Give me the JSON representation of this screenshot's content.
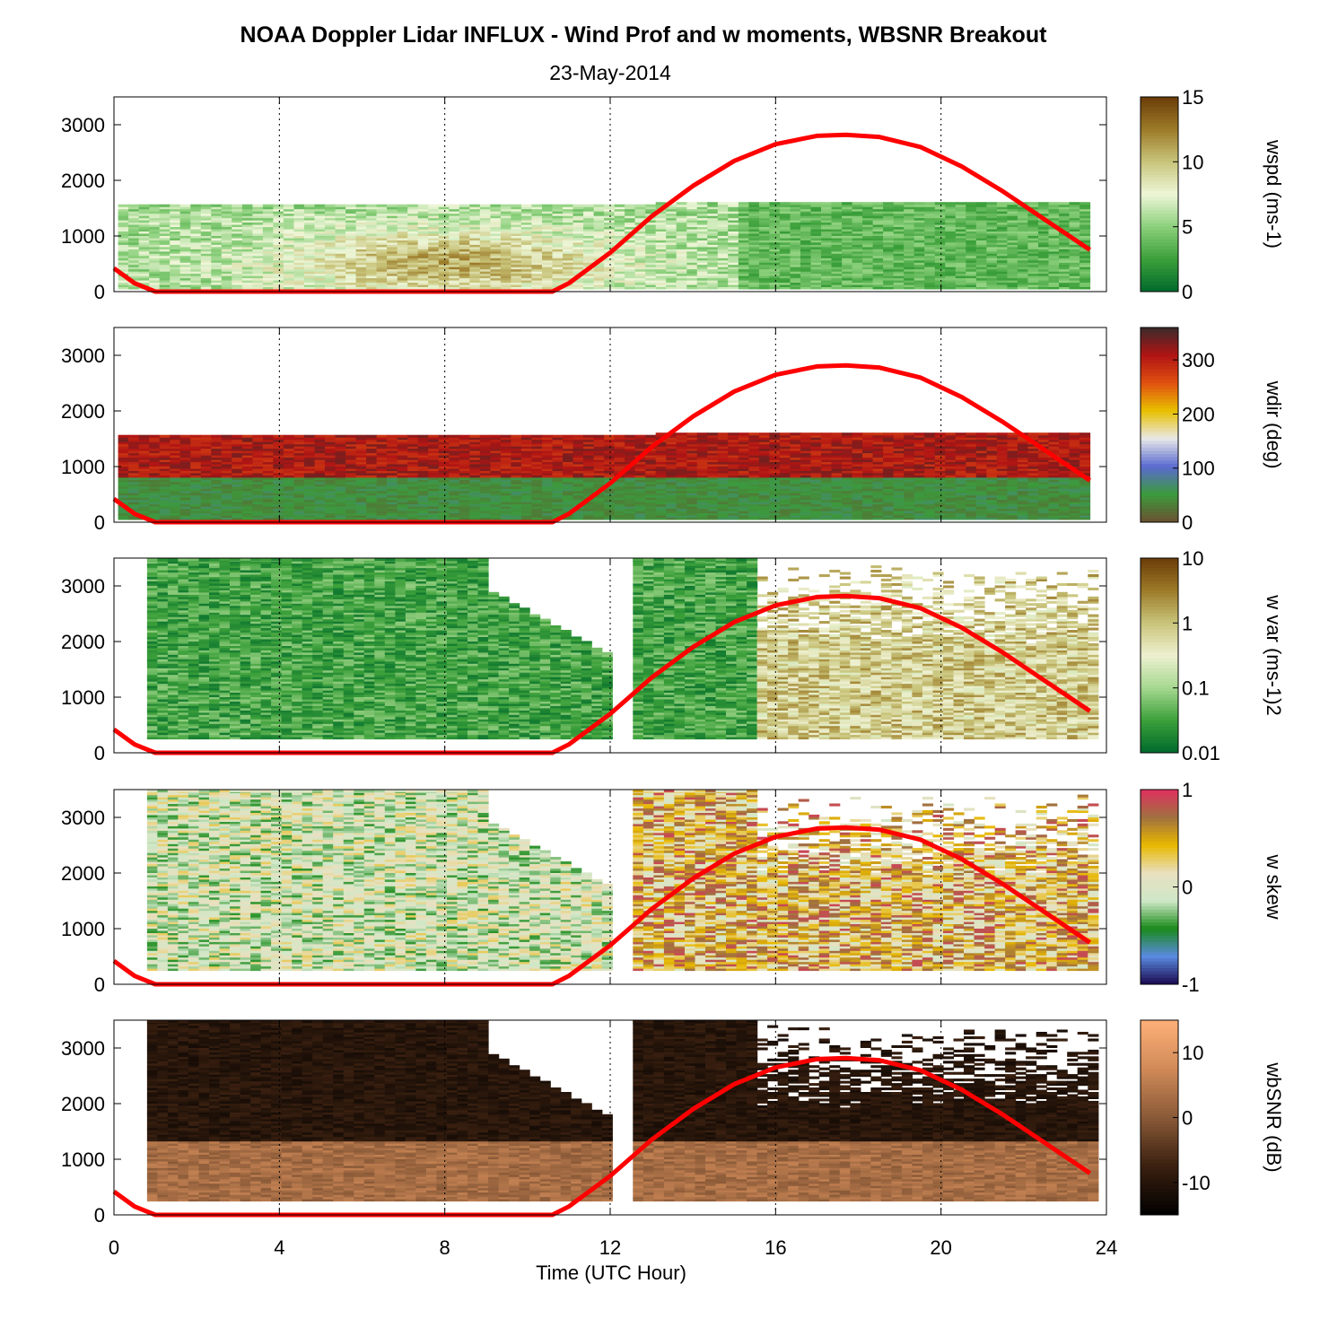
{
  "title": "NOAA Doppler Lidar INFLUX - Wind Prof and w moments, WBSNR Breakout",
  "subtitle": "23-May-2014",
  "xlabel": "Time (UTC Hour)",
  "xticks": [
    "0",
    "4",
    "8",
    "12",
    "16",
    "20",
    "24"
  ],
  "yticks": [
    "0",
    "1000",
    "2000",
    "3000"
  ],
  "chart_data": {
    "type": "heatmap",
    "x_range": [
      0,
      24
    ],
    "y_range": [
      0,
      3500
    ],
    "x_grid": "dotted vertical lines at 4, 8, 12, 16, 20 h",
    "overlay": {
      "name": "",
      "color": "#ff0000",
      "x": [
        0,
        0.5,
        1.0,
        10.6,
        11.0,
        12.0,
        13.0,
        14.0,
        15.0,
        16.0,
        17.0,
        17.7,
        18.5,
        19.5,
        20.5,
        21.5,
        22.5,
        23.6
      ],
      "y": [
        420,
        150,
        0,
        0,
        150,
        700,
        1350,
        1900,
        2350,
        2650,
        2800,
        2820,
        2780,
        2600,
        2250,
        1800,
        1300,
        750
      ]
    },
    "panels": [
      {
        "id": "wspd",
        "colorbar_label": "wspd (ms-1)",
        "cbar_ticks": [
          "15",
          "10",
          "5",
          "0"
        ],
        "cbar_range": [
          0,
          15
        ],
        "colors": [
          "#006a2c",
          "#3ca03a",
          "#8cd07c",
          "#eef6d8",
          "#c8c47a",
          "#9c7a28",
          "#6a3c08"
        ],
        "data_extent": {
          "x": [
            0.1,
            23.6
          ],
          "y": [
            50,
            1600
          ]
        },
        "description": "light green-yellow wind speed layer below ~1600 m, brown maximum near 6-9 h at 400 m"
      },
      {
        "id": "wdir",
        "colorbar_label": "wdir (deg)",
        "cbar_ticks": [
          "300",
          "200",
          "100",
          "0"
        ],
        "cbar_range": [
          0,
          360
        ],
        "colors": [
          "#6a5030",
          "#3c9a3c",
          "#5a6ad0",
          "#e8e8e8",
          "#e8c000",
          "#e05010",
          "#b01414",
          "#3a2a2a"
        ],
        "data_extent": {
          "x": [
            0.1,
            23.6
          ],
          "y": [
            50,
            1600
          ]
        }
      },
      {
        "id": "wvar",
        "colorbar_label": "w var (ms-1)2",
        "cbar_ticks": [
          "10",
          "1",
          "0.1",
          "0.01"
        ],
        "cbar_range": [
          0.01,
          10
        ],
        "cbar_scale": "log",
        "colors": [
          "#006a2c",
          "#3ca03a",
          "#a6d890",
          "#eef0d0",
          "#c8c47a",
          "#9c7a28",
          "#6a3c08"
        ],
        "data_extent": {
          "x": [
            0.8,
            23.6
          ],
          "y": [
            250,
            3500
          ]
        }
      },
      {
        "id": "wskew",
        "colorbar_label": "w skew",
        "cbar_ticks": [
          "1",
          "0",
          "-1"
        ],
        "cbar_range": [
          -1,
          1
        ],
        "colors": [
          "#1a0a50",
          "#5a8ae0",
          "#1a8a1a",
          "#d0e8c8",
          "#e8e0c0",
          "#e8b800",
          "#a07040",
          "#e03060"
        ],
        "data_extent": {
          "x": [
            0.8,
            23.6
          ],
          "y": [
            250,
            3500
          ]
        }
      },
      {
        "id": "wbsnr",
        "colorbar_label": "wbSNR (dB)",
        "cbar_ticks": [
          "10",
          "0",
          "-10"
        ],
        "cbar_range": [
          -15,
          15
        ],
        "colors": [
          "#000000",
          "#3a2010",
          "#8a5a38",
          "#d08a58",
          "#ffb078"
        ],
        "data_extent": {
          "x": [
            0.8,
            23.6
          ],
          "y": [
            250,
            3500
          ]
        }
      }
    ]
  }
}
